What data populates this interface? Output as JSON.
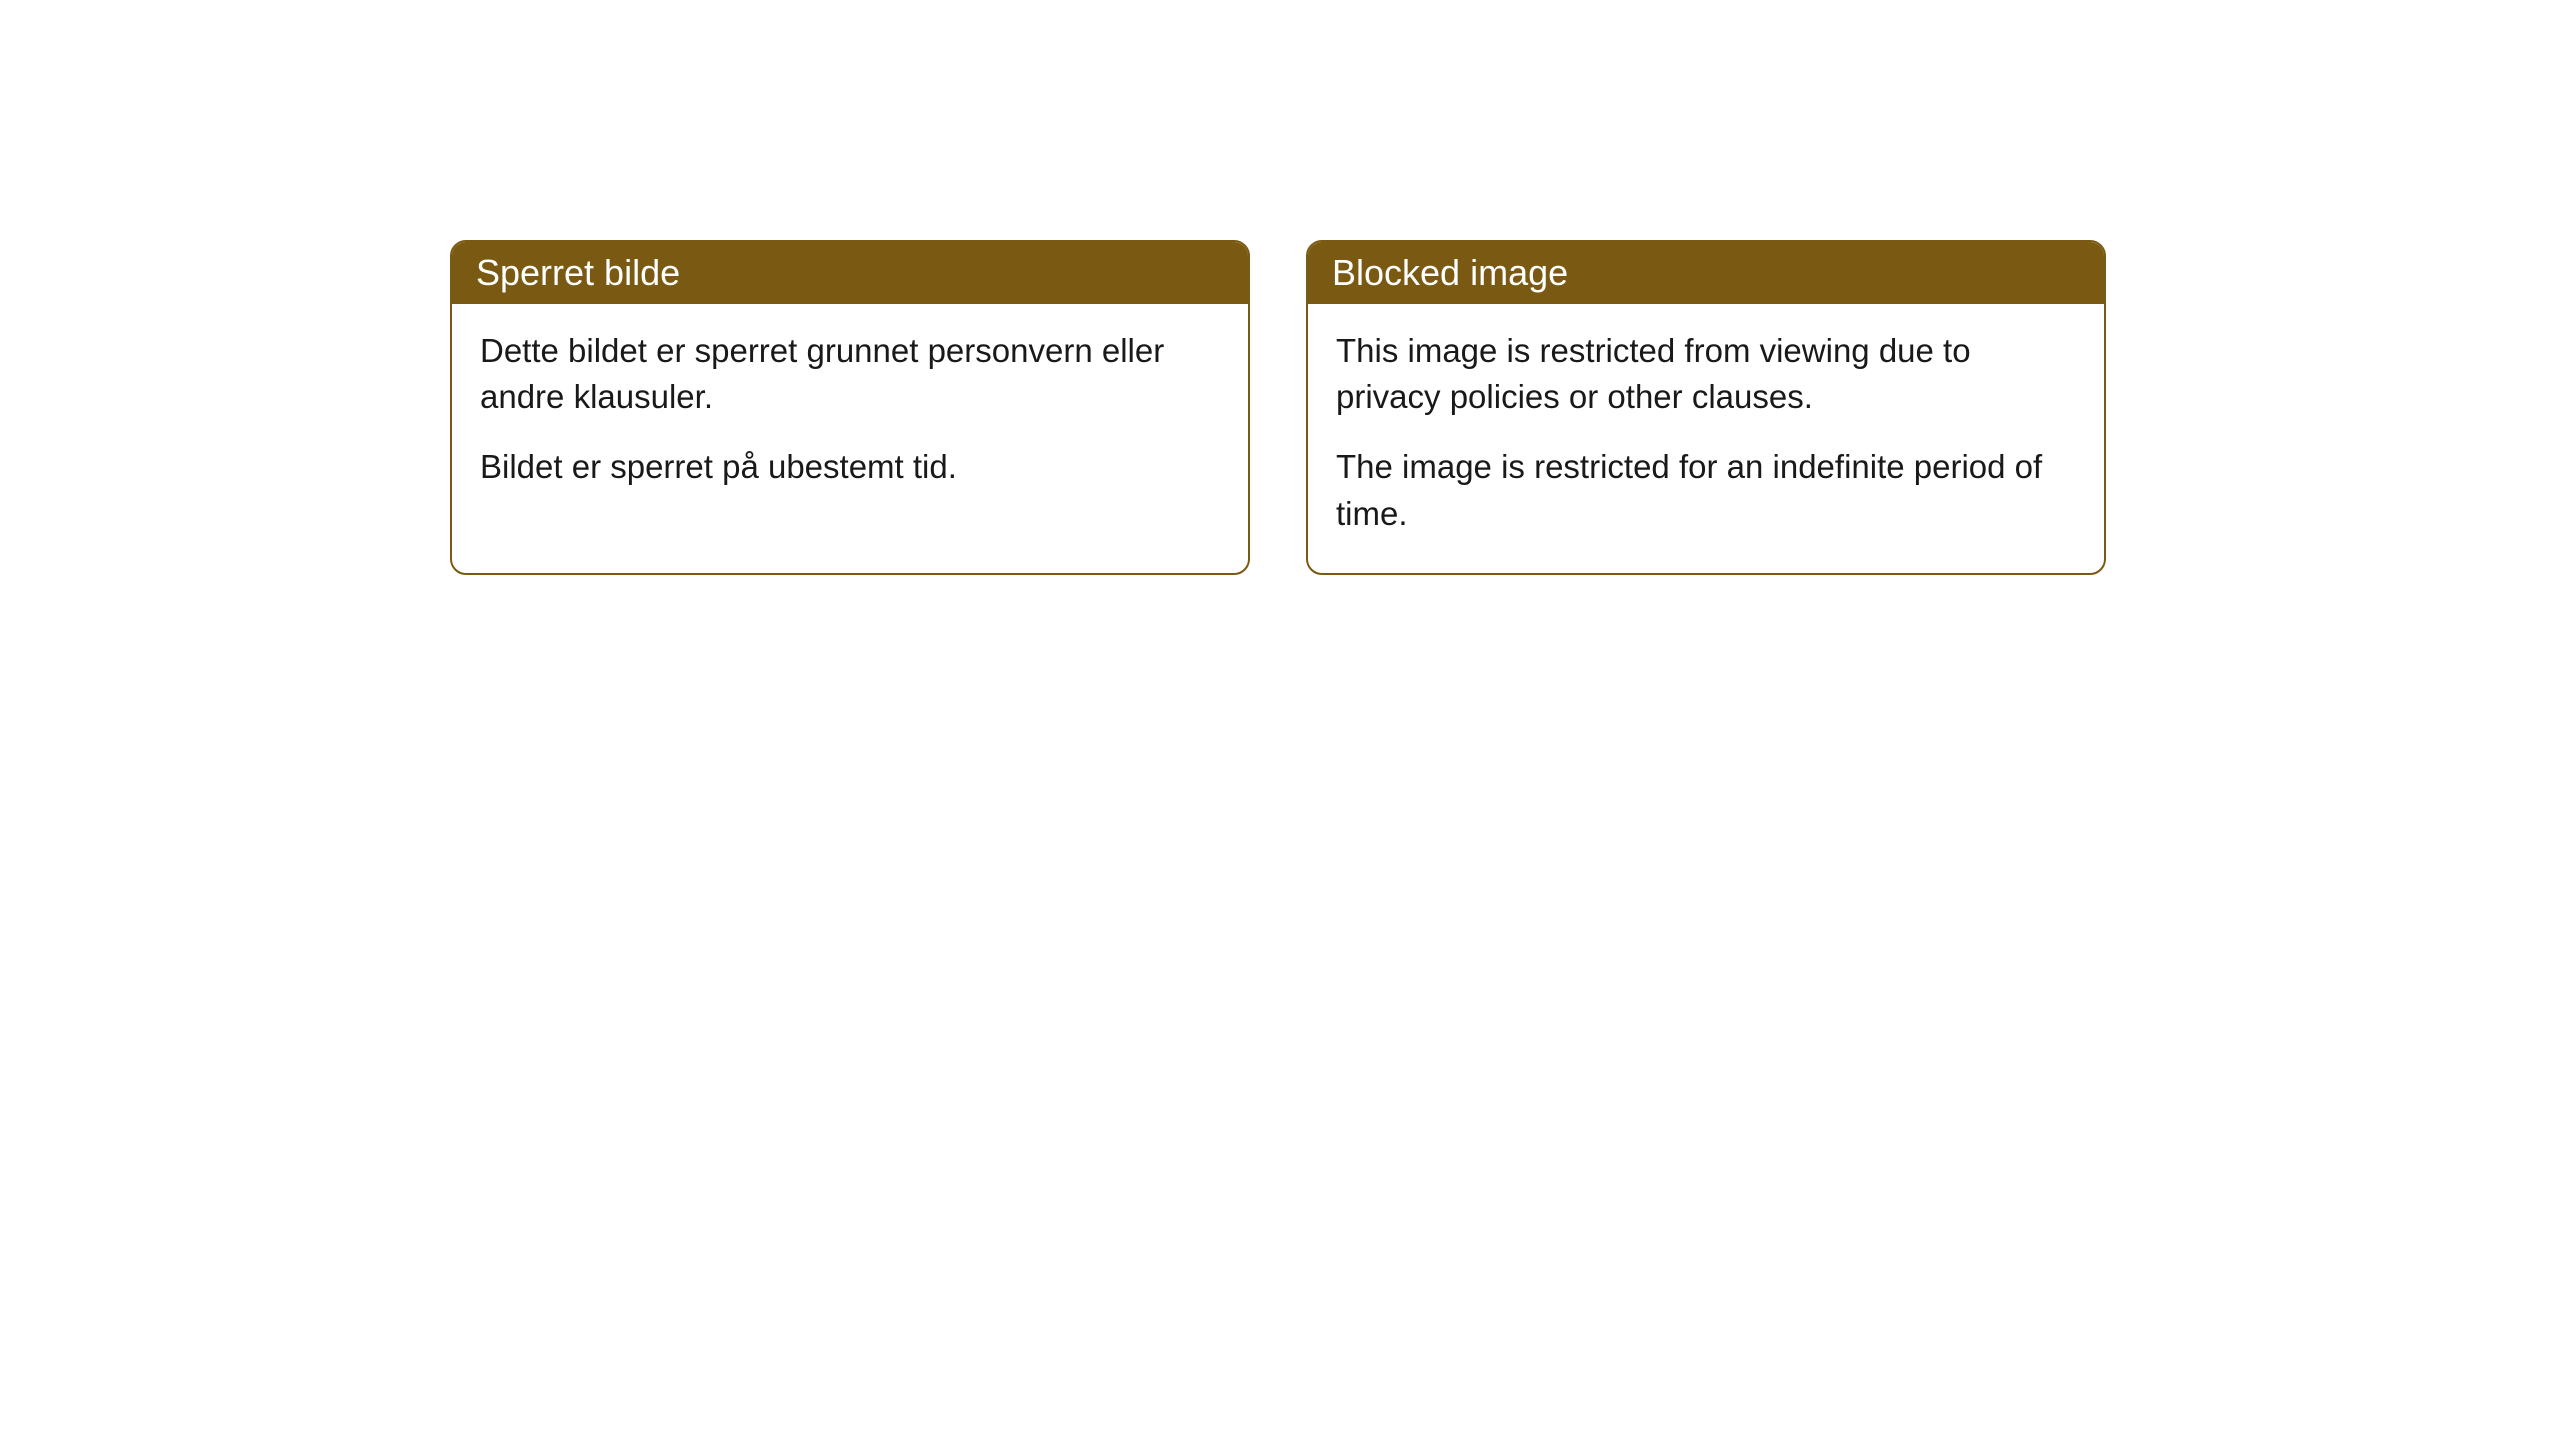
{
  "cards": [
    {
      "header": "Sperret bilde",
      "paragraph1": "Dette bildet er sperret grunnet personvern eller andre klausuler.",
      "paragraph2": "Bildet er sperret på ubestemt tid."
    },
    {
      "header": "Blocked image",
      "paragraph1": "This image is restricted from viewing due to privacy policies or other clauses.",
      "paragraph2": "The image is restricted for an indefinite period of time."
    }
  ],
  "styling": {
    "header_bg_color": "#7a5a12",
    "header_text_color": "#ffffff",
    "body_text_color": "#191919",
    "border_color": "#7a5a12",
    "card_bg_color": "#ffffff",
    "header_fontsize": 36,
    "body_fontsize": 33,
    "border_radius": 16
  }
}
